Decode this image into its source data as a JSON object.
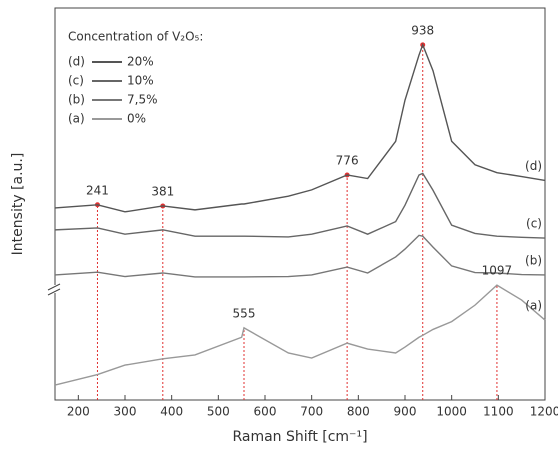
{
  "chart_data": {
    "type": "line",
    "xlabel": "Raman Shift [cm⁻¹]",
    "ylabel": "Intensity [a.u.]",
    "legend_title": "Concentration of V₂O₅:",
    "x": [
      150,
      241,
      300,
      381,
      450,
      550,
      555,
      650,
      700,
      776,
      820,
      880,
      900,
      930,
      938,
      960,
      1000,
      1050,
      1097,
      1150,
      1200
    ],
    "series": [
      {
        "name": "(d)",
        "concentration": "20%",
        "color": "#555555",
        "peaks": [
          241,
          381,
          776,
          938
        ],
        "values": [
          49,
          49.8,
          48,
          49.5,
          48.5,
          50,
          50,
          52,
          53.6,
          57.4,
          56.5,
          66,
          76.5,
          88,
          90.6,
          84,
          66,
          60,
          58,
          57,
          56
        ]
      },
      {
        "name": "(c)",
        "concentration": "10%",
        "color": "#666666",
        "values": [
          43.4,
          43.9,
          42.3,
          43.4,
          41.8,
          41.8,
          41.8,
          41.6,
          42.3,
          44.4,
          42.3,
          45.5,
          49.7,
          57.4,
          57.8,
          53.5,
          44.6,
          42.5,
          41.8,
          41.5,
          41.3
        ]
      },
      {
        "name": "(b)",
        "concentration": "7,5%",
        "color": "#777777",
        "values": [
          31.9,
          32.6,
          31.5,
          32.4,
          31.4,
          31.4,
          31.4,
          31.5,
          31.9,
          33.9,
          32.4,
          36.5,
          38.5,
          42,
          41.8,
          39,
          34.2,
          32.5,
          32.4,
          32,
          31.9
        ]
      },
      {
        "name": "(a)",
        "concentration": "0%",
        "color": "#999999",
        "peaks": [
          555,
          1097
        ],
        "values": [
          3.8,
          6.5,
          8.9,
          10.5,
          11.5,
          16,
          18.4,
          12,
          10.7,
          14.5,
          13,
          12,
          13.5,
          16,
          16.5,
          18,
          20,
          24.2,
          29.3,
          25.5,
          20.4
        ]
      }
    ],
    "xlim": [
      150,
      1200
    ],
    "xticks": [
      200,
      300,
      400,
      500,
      600,
      700,
      800,
      900,
      1000,
      1100,
      1200
    ],
    "ylim": [
      0,
      100
    ],
    "peak_color": "#e03030",
    "legend": "upper left"
  }
}
